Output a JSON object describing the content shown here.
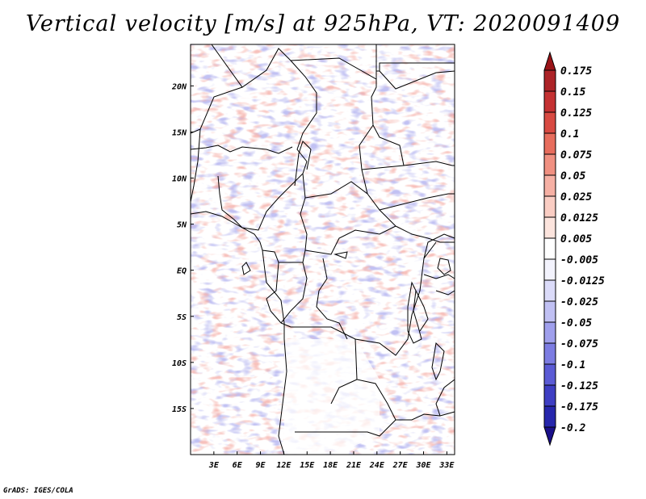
{
  "title": "Vertical velocity [m/s] at 925hPa, VT: 2020091409",
  "footer": "GrADS: IGES/COLA",
  "chart_data": {
    "type": "heatmap",
    "variable": "Vertical velocity",
    "units": "m/s",
    "level": "925hPa",
    "valid_time": "2020091409",
    "lon_range": [
      0,
      34
    ],
    "lat_range": [
      -20,
      24.5
    ],
    "x_ticks": [
      {
        "value": 3,
        "label": "3E"
      },
      {
        "value": 6,
        "label": "6E"
      },
      {
        "value": 9,
        "label": "9E"
      },
      {
        "value": 12,
        "label": "12E"
      },
      {
        "value": 15,
        "label": "15E"
      },
      {
        "value": 18,
        "label": "18E"
      },
      {
        "value": 21,
        "label": "21E"
      },
      {
        "value": 24,
        "label": "24E"
      },
      {
        "value": 27,
        "label": "27E"
      },
      {
        "value": 30,
        "label": "30E"
      },
      {
        "value": 33,
        "label": "33E"
      }
    ],
    "y_ticks": [
      {
        "value": 20,
        "label": "20N"
      },
      {
        "value": 15,
        "label": "15N"
      },
      {
        "value": 10,
        "label": "10N"
      },
      {
        "value": 5,
        "label": "5N"
      },
      {
        "value": 0,
        "label": "EQ"
      },
      {
        "value": -5,
        "label": "5S"
      },
      {
        "value": -10,
        "label": "10S"
      },
      {
        "value": -15,
        "label": "15S"
      }
    ],
    "colorbar": {
      "levels": [
        {
          "label": "0.175",
          "color": "#a01e22"
        },
        {
          "label": "0.15",
          "color": "#b8282b"
        },
        {
          "label": "0.125",
          "color": "#cf3a38"
        },
        {
          "label": "0.1",
          "color": "#e15a4c"
        },
        {
          "label": "0.075",
          "color": "#ec7f6e"
        },
        {
          "label": "0.05",
          "color": "#f3a093"
        },
        {
          "label": "0.025",
          "color": "#f8c0b5"
        },
        {
          "label": "0.0125",
          "color": "#fbd9d1"
        },
        {
          "label": "0.005",
          "color": "#fdeee9"
        },
        {
          "label": "-0.005",
          "color": "#ffffff"
        },
        {
          "label": "-0.0125",
          "color": "#e6e6fb"
        },
        {
          "label": "-0.025",
          "color": "#cfcff6"
        },
        {
          "label": "-0.05",
          "color": "#b0b0f0"
        },
        {
          "label": "-0.075",
          "color": "#8e8ee8"
        },
        {
          "label": "-0.1",
          "color": "#6a6adc"
        },
        {
          "label": "-0.125",
          "color": "#4b4bcd"
        },
        {
          "label": "-0.175",
          "color": "#3030b8"
        },
        {
          "label": "-0.2",
          "color": "#1c1ca0"
        }
      ],
      "top_color": "#9a1418",
      "bottom_color": "#1a0f8a"
    }
  }
}
